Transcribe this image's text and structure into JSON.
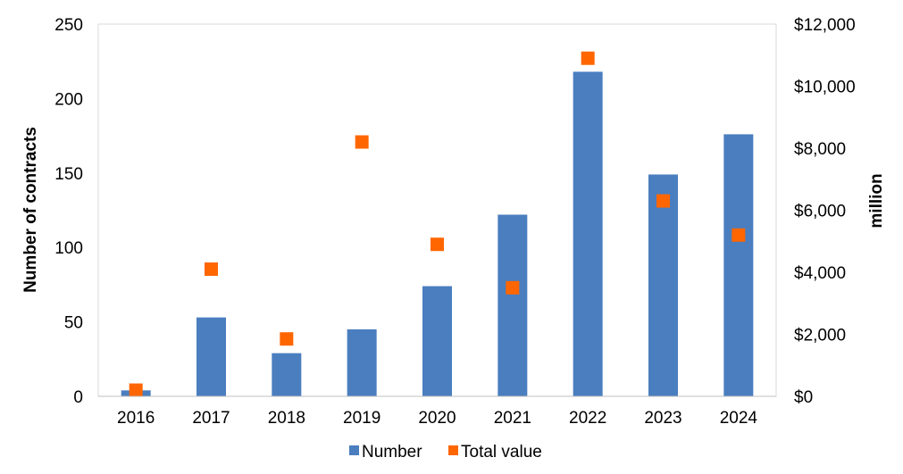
{
  "chart_data": {
    "type": "bar",
    "categories": [
      "2016",
      "2017",
      "2018",
      "2019",
      "2020",
      "2021",
      "2022",
      "2023",
      "2024"
    ],
    "series": [
      {
        "name": "Number",
        "kind": "bar",
        "axis": "left",
        "color": "#4a7ebf",
        "values": [
          4,
          53,
          29,
          45,
          74,
          122,
          218,
          149,
          176
        ]
      },
      {
        "name": "Total value",
        "kind": "marker",
        "axis": "right",
        "color": "#ff6600",
        "values": [
          200,
          4100,
          1850,
          8200,
          4900,
          3500,
          10900,
          6300,
          5200
        ]
      }
    ],
    "ylabel": "Number of contracts",
    "y2label": "million",
    "ylim": [
      0,
      250
    ],
    "y2lim": [
      0,
      12000
    ],
    "yticks": [
      "0",
      "50",
      "100",
      "150",
      "200",
      "250"
    ],
    "y2ticks": [
      "$0",
      "$2,000",
      "$4,000",
      "$6,000",
      "$8,000",
      "$10,000",
      "$12,000"
    ],
    "legend": "bottom"
  }
}
